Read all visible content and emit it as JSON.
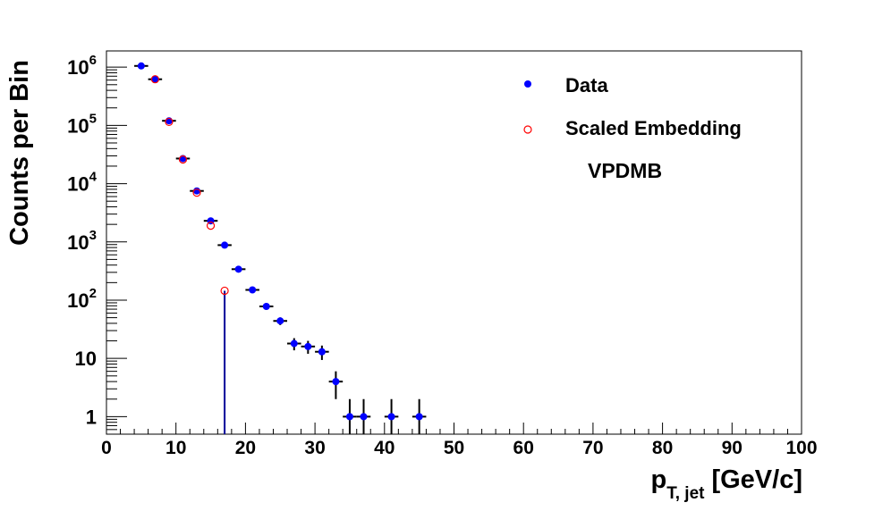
{
  "chart_data": {
    "type": "scatter",
    "xlabel": "p",
    "xlabel_sub": "T, jet",
    "xlabel_unit": "[GeV/c]",
    "ylabel": "Counts per Bin",
    "xlim": [
      0,
      100
    ],
    "ylim": [
      0.5,
      1900000
    ],
    "yscale": "log",
    "grid": false,
    "legend_position": "top-right",
    "x_ticks": [
      0,
      10,
      20,
      30,
      40,
      50,
      60,
      70,
      80,
      90,
      100
    ],
    "x_tick_labels": [
      "0",
      "10",
      "20",
      "30",
      "40",
      "50",
      "60",
      "70",
      "80",
      "90",
      "100"
    ],
    "y_ticks": [
      {
        "value": 1,
        "base": "1",
        "exp": ""
      },
      {
        "value": 10,
        "base": "10",
        "exp": ""
      },
      {
        "value": 100,
        "base": "10",
        "exp": "2"
      },
      {
        "value": 1000,
        "base": "10",
        "exp": "3"
      },
      {
        "value": 10000,
        "base": "10",
        "exp": "4"
      },
      {
        "value": 100000,
        "base": "10",
        "exp": "5"
      },
      {
        "value": 1000000,
        "base": "10",
        "exp": "6"
      }
    ],
    "annotation": "VPDMB",
    "series": [
      {
        "name": "Data",
        "marker": "filled-circle",
        "color": "#0000ff",
        "points": [
          {
            "x": 5,
            "y": 1050000
          },
          {
            "x": 7,
            "y": 620000
          },
          {
            "x": 9,
            "y": 120000
          },
          {
            "x": 11,
            "y": 27000
          },
          {
            "x": 13,
            "y": 7500
          },
          {
            "x": 15,
            "y": 2300
          },
          {
            "x": 17,
            "y": 880
          },
          {
            "x": 19,
            "y": 340
          },
          {
            "x": 21,
            "y": 150
          },
          {
            "x": 23,
            "y": 78
          },
          {
            "x": 25,
            "y": 44
          },
          {
            "x": 27,
            "y": 18
          },
          {
            "x": 29,
            "y": 16
          },
          {
            "x": 31,
            "y": 13
          },
          {
            "x": 33,
            "y": 4
          },
          {
            "x": 35,
            "y": 1
          },
          {
            "x": 37,
            "y": 1
          },
          {
            "x": 41,
            "y": 1
          },
          {
            "x": 45,
            "y": 1
          }
        ]
      },
      {
        "name": "Scaled Embedding",
        "marker": "open-circle",
        "color": "#ff0000",
        "points": [
          {
            "x": 7,
            "y": 620000
          },
          {
            "x": 9,
            "y": 115000
          },
          {
            "x": 11,
            "y": 26000
          },
          {
            "x": 13,
            "y": 7000
          },
          {
            "x": 15,
            "y": 1900
          },
          {
            "x": 17,
            "y": 145
          }
        ]
      }
    ]
  }
}
